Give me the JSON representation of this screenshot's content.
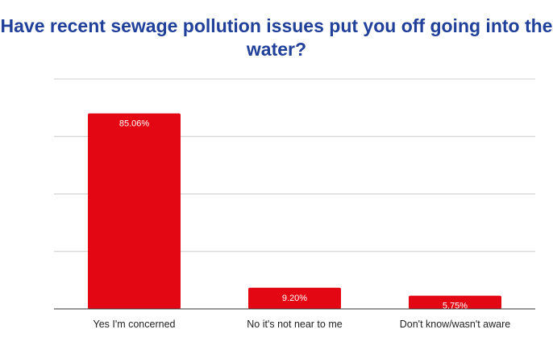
{
  "chart_data": {
    "type": "bar",
    "title": "Have recent sewage pollution issues put you off going into the water?",
    "categories": [
      "Yes I'm concerned",
      "No it's not near to me",
      "Don't know/wasn't aware"
    ],
    "values": [
      85.06,
      9.2,
      5.75
    ],
    "data_labels": [
      "85.06%",
      "9.20%",
      "5.75%"
    ],
    "xlabel": "",
    "ylabel": "",
    "ylim": [
      0,
      100
    ],
    "y_gridlines": [
      25,
      50,
      75,
      100
    ],
    "grid": true,
    "legend": "none",
    "colors": {
      "bar": "#e30613",
      "title": "#21409a",
      "grid": "#cccccc",
      "axis": "#333333"
    }
  }
}
